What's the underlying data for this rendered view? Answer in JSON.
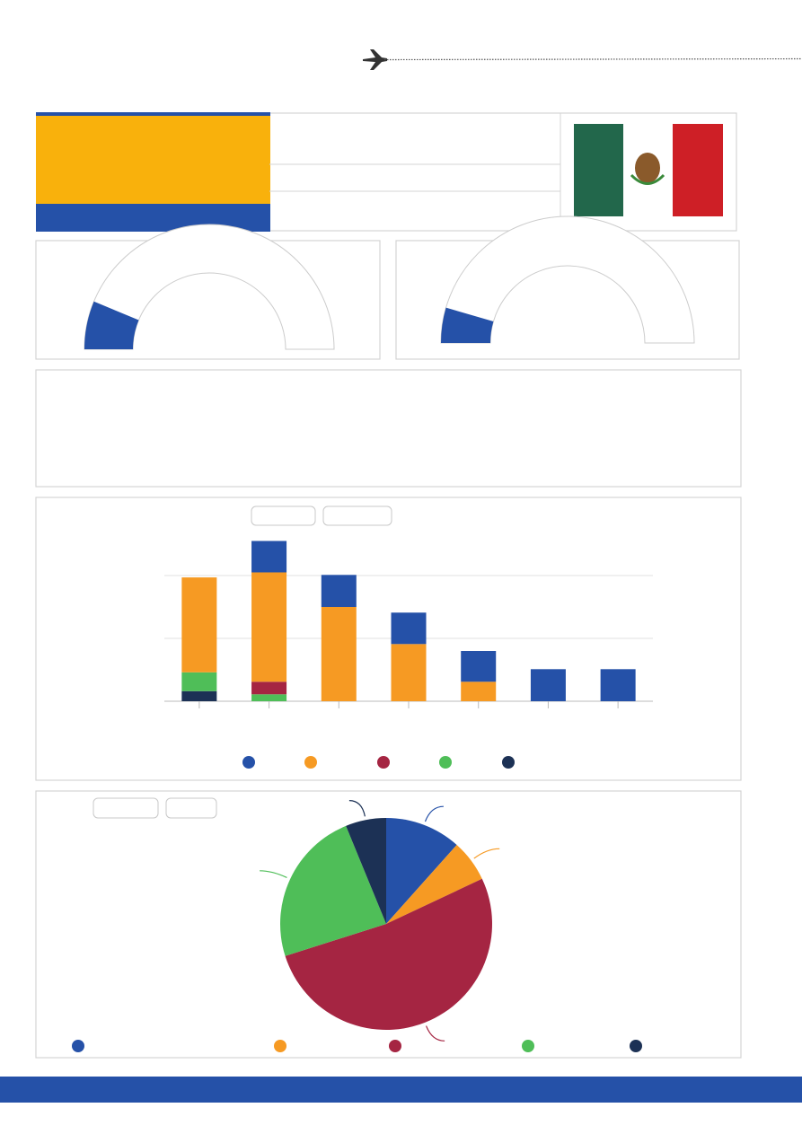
{
  "chart_data": [
    {
      "type": "gauge",
      "value": 12.5,
      "lim": [
        0,
        100
      ],
      "color": "#2551a8"
    },
    {
      "type": "gauge",
      "value": 9,
      "lim": [
        0,
        100
      ],
      "color": "#2551a8"
    },
    {
      "type": "bar",
      "stacked": true,
      "grid": true,
      "categories": [
        null,
        null,
        null,
        null,
        null,
        null,
        null
      ],
      "ylim": [
        0,
        2.6
      ],
      "yticks": [
        0,
        1,
        2
      ],
      "series": [
        {
          "color": "#2551a8",
          "values": [
            0,
            0.5,
            0.51,
            0.5,
            0.49,
            0.51,
            0.51
          ]
        },
        {
          "color": "#f69a23",
          "values": [
            1.51,
            1.74,
            1.5,
            0.91,
            0.31,
            0,
            0
          ]
        },
        {
          "color": "#a52542",
          "values": [
            0,
            0.2,
            0,
            0,
            0,
            0,
            0
          ]
        },
        {
          "color": "#4fbe58",
          "values": [
            0.3,
            0.11,
            0,
            0,
            0,
            0,
            0
          ]
        },
        {
          "color": "#1c3155",
          "values": [
            0.16,
            0,
            0,
            0,
            0,
            0,
            0
          ]
        }
      ]
    },
    {
      "type": "pie",
      "values": [
        11.6,
        6.4,
        52.1,
        23.7,
        6.2
      ],
      "colors": [
        "#2551a8",
        "#f69a23",
        "#a52542",
        "#4fbe58",
        "#1c3155"
      ]
    }
  ]
}
